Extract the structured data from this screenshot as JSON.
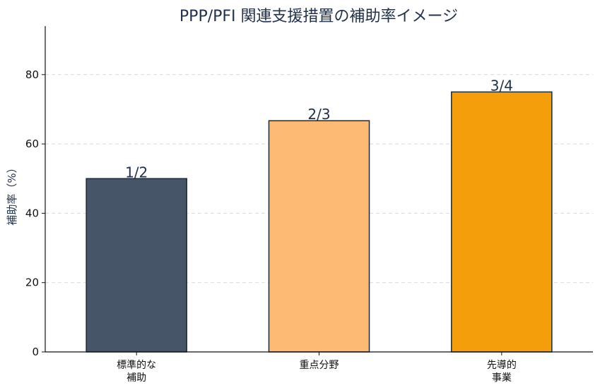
{
  "chart_data": {
    "type": "bar",
    "title": "PPP/PFI 関連支援措置の補助率イメージ",
    "xlabel": "",
    "ylabel": "補助率（%）",
    "categories": [
      [
        "標準的な",
        "補助"
      ],
      [
        "重点分野"
      ],
      [
        "先導的",
        "事業"
      ]
    ],
    "values": [
      50,
      66.7,
      75
    ],
    "value_labels": [
      "1/2",
      "2/3",
      "3/4"
    ],
    "colors": [
      "#475569",
      "#fdba74",
      "#f59e0b"
    ],
    "bar_edge_color": "#1f2937",
    "ylim": [
      0,
      94
    ],
    "yticks": [
      0,
      20,
      40,
      60,
      80
    ],
    "grid": true,
    "legend": "none"
  },
  "theme": {
    "title_color": "#22324a",
    "axis_color": "#111111",
    "grid_color": "#d9d9d9",
    "label_color": "#22324a"
  }
}
